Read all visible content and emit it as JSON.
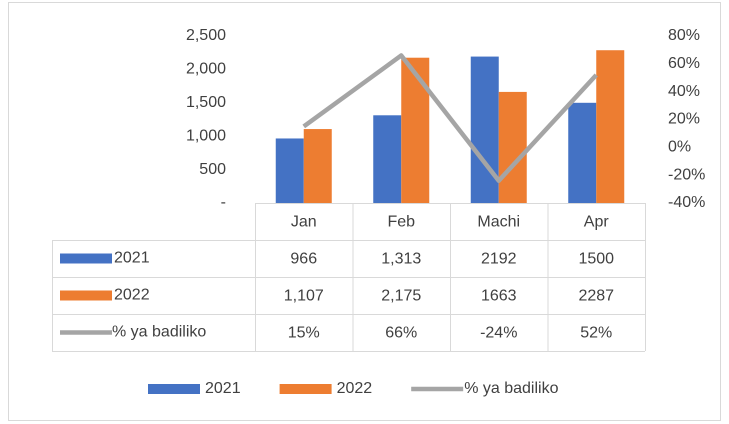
{
  "chart_data": {
    "type": "bar",
    "categories": [
      "Jan",
      "Feb",
      "Machi",
      "Apr"
    ],
    "series": [
      {
        "name": "2021",
        "color": "#4472c4",
        "values": [
          966,
          1313,
          2192,
          1500
        ],
        "value_labels": [
          "966",
          "1,313",
          "2192",
          "1500"
        ]
      },
      {
        "name": "2022",
        "color": "#ed7d31",
        "values": [
          1107,
          2175,
          1663,
          2287
        ],
        "value_labels": [
          "1,107",
          "2,175",
          "1663",
          "2287"
        ]
      },
      {
        "name": "% ya badiliko",
        "type": "line",
        "axis": "y2",
        "color": "#a5a5a5",
        "values": [
          15,
          66,
          -24,
          52
        ],
        "value_labels": [
          "15%",
          "66%",
          "-24%",
          "52%"
        ]
      }
    ],
    "ylim": [
      0,
      2500
    ],
    "yticks": [
      {
        "value": 0,
        "label": "-"
      },
      500,
      {
        "value": 1000,
        "label": "1,000"
      },
      {
        "value": 1500,
        "label": "1,500"
      },
      {
        "value": 2000,
        "label": "2,000"
      },
      {
        "value": 2500,
        "label": "2,500"
      }
    ],
    "y2lim": [
      -40,
      80
    ],
    "y2ticks": [
      {
        "value": -40,
        "label": "-40%"
      },
      {
        "value": -20,
        "label": "-20%"
      },
      {
        "value": 0,
        "label": "0%"
      },
      {
        "value": 20,
        "label": "20%"
      },
      {
        "value": 40,
        "label": "40%"
      },
      {
        "value": 60,
        "label": "60%"
      },
      {
        "value": 80,
        "label": "80%"
      }
    ],
    "legend": "bottom",
    "data_table": true
  }
}
